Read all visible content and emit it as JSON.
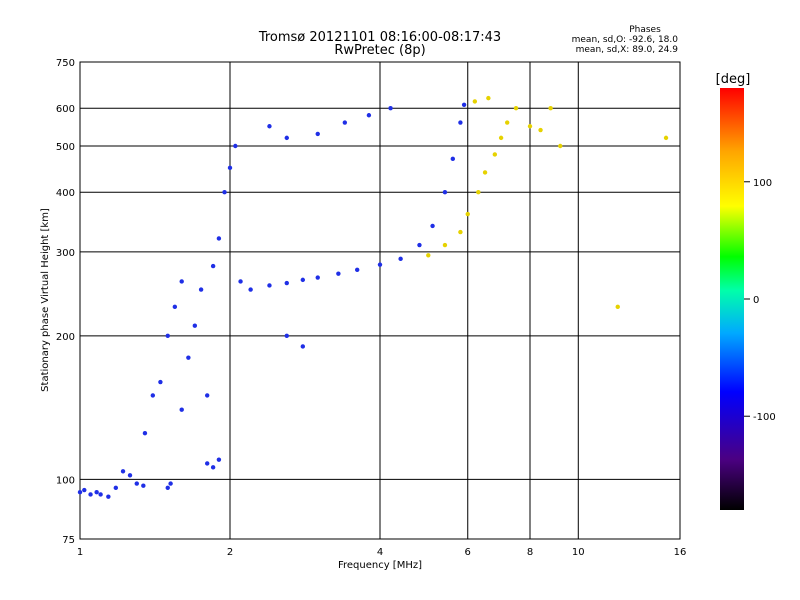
{
  "chart_data": {
    "type": "scatter",
    "title": "Tromsø 20121101 08:16:00-08:17:43",
    "subtitle": "RwPretec (8p)",
    "stats": {
      "header": "Phases",
      "line1": "mean, sd,O: -92.6, 18.0",
      "line2": "mean, sd,X:  89.0, 24.9"
    },
    "xlabel": "Frequency [MHz]",
    "ylabel": "Stationary phase Virtual Height [km]",
    "x_scale": "log",
    "y_scale": "log",
    "xlim": [
      1,
      16
    ],
    "ylim": [
      75,
      750
    ],
    "xticks": [
      1,
      2,
      4,
      6,
      8,
      10,
      16
    ],
    "xtick_labels": [
      "1",
      "2",
      "4",
      "6",
      "8",
      "10",
      "16"
    ],
    "yticks": [
      75,
      100,
      200,
      300,
      400,
      500,
      600,
      750
    ],
    "ytick_labels": [
      "75",
      "100",
      "200",
      "300",
      "400",
      "500",
      "600",
      "750"
    ],
    "grid": true,
    "colorbar": {
      "label": "[deg]",
      "range": [
        -180,
        180
      ],
      "ticks": [
        100,
        0,
        -100
      ],
      "tick_labels": [
        "100",
        "0",
        "-100"
      ]
    },
    "series": [
      {
        "values": [
          {
            "x": 1.0,
            "y": 94
          },
          {
            "x": 1.02,
            "y": 95
          },
          {
            "x": 1.05,
            "y": 93
          },
          {
            "x": 1.08,
            "y": 94
          },
          {
            "x": 1.1,
            "y": 93
          },
          {
            "x": 1.14,
            "y": 92
          },
          {
            "x": 1.18,
            "y": 96
          },
          {
            "x": 1.22,
            "y": 104
          },
          {
            "x": 1.26,
            "y": 102
          },
          {
            "x": 1.3,
            "y": 98
          },
          {
            "x": 1.34,
            "y": 97
          },
          {
            "x": 1.5,
            "y": 96
          },
          {
            "x": 1.52,
            "y": 98
          },
          {
            "x": 1.8,
            "y": 108
          },
          {
            "x": 1.85,
            "y": 106
          },
          {
            "x": 1.9,
            "y": 110
          },
          {
            "x": 1.35,
            "y": 125
          },
          {
            "x": 1.4,
            "y": 150
          },
          {
            "x": 1.45,
            "y": 160
          },
          {
            "x": 1.5,
            "y": 200
          },
          {
            "x": 1.55,
            "y": 230
          },
          {
            "x": 1.6,
            "y": 260
          },
          {
            "x": 1.6,
            "y": 140
          },
          {
            "x": 1.65,
            "y": 180
          },
          {
            "x": 1.7,
            "y": 210
          },
          {
            "x": 1.75,
            "y": 250
          },
          {
            "x": 1.8,
            "y": 150
          },
          {
            "x": 1.85,
            "y": 280
          },
          {
            "x": 1.9,
            "y": 320
          },
          {
            "x": 1.95,
            "y": 400
          },
          {
            "x": 2.0,
            "y": 450
          },
          {
            "x": 2.05,
            "y": 500
          },
          {
            "x": 2.1,
            "y": 260
          },
          {
            "x": 2.2,
            "y": 250
          },
          {
            "x": 2.4,
            "y": 255
          },
          {
            "x": 2.6,
            "y": 258
          },
          {
            "x": 2.8,
            "y": 262
          },
          {
            "x": 3.0,
            "y": 265
          },
          {
            "x": 3.3,
            "y": 270
          },
          {
            "x": 3.6,
            "y": 275
          },
          {
            "x": 4.0,
            "y": 282
          },
          {
            "x": 4.4,
            "y": 290
          },
          {
            "x": 4.8,
            "y": 310
          },
          {
            "x": 5.1,
            "y": 340
          },
          {
            "x": 5.4,
            "y": 400
          },
          {
            "x": 5.6,
            "y": 470
          },
          {
            "x": 5.8,
            "y": 560
          },
          {
            "x": 5.9,
            "y": 610
          },
          {
            "x": 2.4,
            "y": 550
          },
          {
            "x": 2.6,
            "y": 520
          },
          {
            "x": 3.0,
            "y": 530
          },
          {
            "x": 3.4,
            "y": 560
          },
          {
            "x": 3.8,
            "y": 580
          },
          {
            "x": 4.2,
            "y": 600
          },
          {
            "x": 2.6,
            "y": 200
          },
          {
            "x": 2.8,
            "y": 190
          }
        ]
      },
      {
        "values": [
          {
            "x": 5.0,
            "y": 295
          },
          {
            "x": 5.4,
            "y": 310
          },
          {
            "x": 5.8,
            "y": 330
          },
          {
            "x": 6.0,
            "y": 360
          },
          {
            "x": 6.3,
            "y": 400
          },
          {
            "x": 6.5,
            "y": 440
          },
          {
            "x": 6.8,
            "y": 480
          },
          {
            "x": 7.0,
            "y": 520
          },
          {
            "x": 7.2,
            "y": 560
          },
          {
            "x": 7.5,
            "y": 600
          },
          {
            "x": 6.2,
            "y": 620
          },
          {
            "x": 6.6,
            "y": 630
          },
          {
            "x": 8.0,
            "y": 550
          },
          {
            "x": 8.4,
            "y": 540
          },
          {
            "x": 8.8,
            "y": 600
          },
          {
            "x": 9.2,
            "y": 500
          },
          {
            "x": 12.0,
            "y": 230
          },
          {
            "x": 15.0,
            "y": 520
          }
        ]
      }
    ]
  }
}
